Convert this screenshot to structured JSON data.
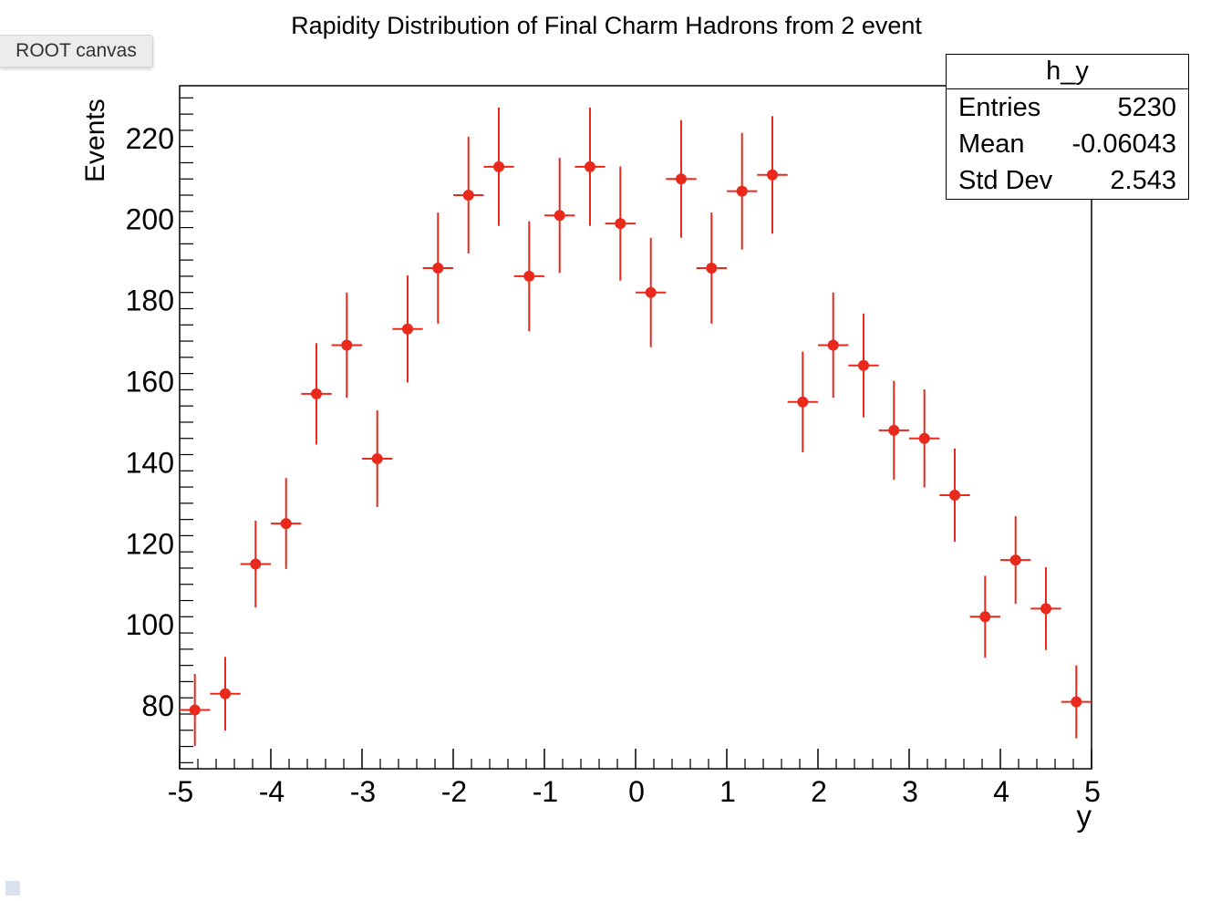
{
  "window": {
    "tab_label": "ROOT canvas"
  },
  "colors": {
    "marker": "#e8291c",
    "axis": "#000000",
    "background": "#ffffff"
  },
  "stats": {
    "title": "h_y",
    "rows": [
      {
        "label": "Entries",
        "value": "5230"
      },
      {
        "label": "Mean",
        "value": "-0.06043"
      },
      {
        "label": "Std Dev",
        "value": "2.543"
      }
    ]
  },
  "chart_data": {
    "type": "scatter",
    "title": "Rapidity Distribution of Final Charm Hadrons from 2 event",
    "xlabel": "y",
    "ylabel": "Events",
    "xlim": [
      -5,
      5
    ],
    "ylim": [
      64.5,
      233
    ],
    "x_ticks": [
      -5,
      -4,
      -3,
      -2,
      -1,
      0,
      1,
      2,
      3,
      4,
      5
    ],
    "y_ticks": [
      80,
      100,
      120,
      140,
      160,
      180,
      200,
      220
    ],
    "bin_width": 0.3333,
    "grid": false,
    "legend": "none",
    "series": [
      {
        "marker": "filled-circle-with-error-bars",
        "x": [
          -4.833,
          -4.5,
          -4.167,
          -3.833,
          -3.5,
          -3.167,
          -2.833,
          -2.5,
          -2.167,
          -1.833,
          -1.5,
          -1.167,
          -0.833,
          -0.5,
          -0.167,
          0.167,
          0.5,
          0.833,
          1.167,
          1.5,
          1.833,
          2.167,
          2.5,
          2.833,
          3.167,
          3.5,
          3.833,
          4.167,
          4.5,
          4.833
        ],
        "y": [
          79,
          83,
          115,
          125,
          157,
          169,
          141,
          173,
          188,
          206,
          213,
          186,
          201,
          213,
          199,
          182,
          210,
          188,
          207,
          211,
          155,
          169,
          164,
          148,
          146,
          132,
          102,
          116,
          104,
          81
        ],
        "errors": [
          8.9,
          9.1,
          10.7,
          11.2,
          12.5,
          13.0,
          11.9,
          13.2,
          13.7,
          14.4,
          14.6,
          13.6,
          14.2,
          14.6,
          14.1,
          13.5,
          14.5,
          13.7,
          14.4,
          14.5,
          12.4,
          13.0,
          12.8,
          12.2,
          12.1,
          11.5,
          10.1,
          10.8,
          10.2,
          9.0
        ]
      }
    ]
  }
}
